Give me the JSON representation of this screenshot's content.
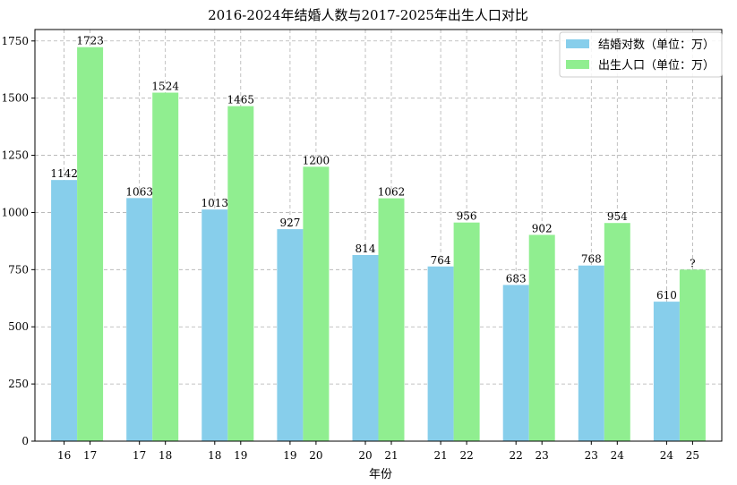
{
  "chart_data": {
    "type": "bar",
    "title": "2016-2024年结婚人数与2017-2025年出生人口对比",
    "xlabel": "年份",
    "ylabel": "",
    "ylim": [
      0,
      1800
    ],
    "yticks": [
      0,
      250,
      500,
      750,
      1000,
      1250,
      1500,
      1750
    ],
    "grid": true,
    "legend_position": "top-right",
    "colors": {
      "marriage": "#87ceeb",
      "birth": "#90ee90"
    },
    "series": [
      {
        "name": "结婚对数（单位：万）",
        "tick_labels": [
          "16",
          "17",
          "18",
          "19",
          "20",
          "21",
          "22",
          "23",
          "24"
        ],
        "values": [
          1142,
          1063,
          1013,
          927,
          814,
          764,
          683,
          768,
          610
        ],
        "value_labels": [
          "1142",
          "1063",
          "1013",
          "927",
          "814",
          "764",
          "683",
          "768",
          "610"
        ]
      },
      {
        "name": "出生人口（单位：万）",
        "tick_labels": [
          "17",
          "18",
          "19",
          "20",
          "21",
          "22",
          "23",
          "24",
          "25"
        ],
        "values": [
          1723,
          1524,
          1465,
          1200,
          1062,
          956,
          902,
          954,
          750
        ],
        "value_labels": [
          "1723",
          "1524",
          "1465",
          "1200",
          "1062",
          "956",
          "902",
          "954",
          "?"
        ]
      }
    ]
  }
}
